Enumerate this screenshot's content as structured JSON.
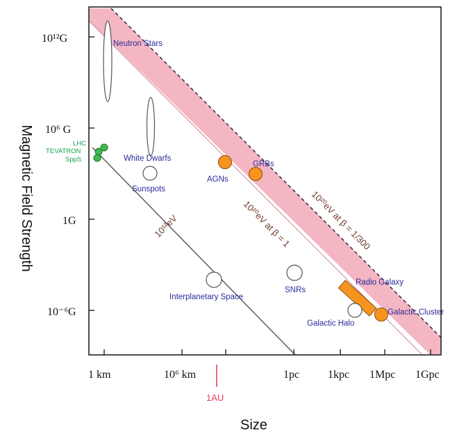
{
  "chart_data": {
    "type": "scatter",
    "xlabel": "Size",
    "ylabel": "Magnetic Field Strength",
    "x_tick_labels": [
      "1 km",
      "10⁶ km",
      "1pc",
      "1kpc",
      "1Mpc",
      "1Gpc"
    ],
    "y_tick_labels": [
      "10¹²G",
      "10⁶ G",
      "1G",
      "10⁻⁶G"
    ],
    "band": {
      "label_lower": "10²⁰eV at β = 1",
      "label_upper": "10²⁰eV at β = 1/300",
      "color": "#f4b6c2"
    },
    "lower_line_label": "10¹²eV",
    "au_marker_label": "1AU",
    "objects": [
      {
        "name": "Neutron Stars",
        "shape": "ellipse"
      },
      {
        "name": "White Dwarfs",
        "shape": "ellipse"
      },
      {
        "name": "Sunspots",
        "shape": "circle"
      },
      {
        "name": "AGNs",
        "shape": "circle",
        "fill": "#f7941d"
      },
      {
        "name": "GRBs",
        "shape": "circle",
        "fill": "#f7941d"
      },
      {
        "name": "Interplanetary Space",
        "shape": "circle"
      },
      {
        "name": "SNRs",
        "shape": "circle"
      },
      {
        "name": "Radio Galaxy",
        "shape": "bar",
        "fill": "#f7941d"
      },
      {
        "name": "Galactic Halo",
        "shape": "circle"
      },
      {
        "name": "Galactic Cluster",
        "shape": "circle",
        "fill": "#f7941d"
      }
    ],
    "accelerators": [
      "LHC",
      "TEVATRON",
      "SppS"
    ],
    "colors": {
      "objects_label": "#2b2b9c",
      "accelerators": "#12a34a",
      "orange": "#f7941d",
      "au": "#e8415a"
    }
  }
}
